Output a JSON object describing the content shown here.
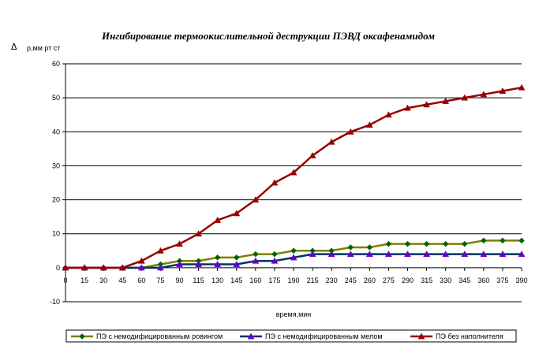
{
  "chart_data": {
    "type": "line",
    "title": "Ингибирование термоокислительной деструкции ПЭВД оксафенамидом",
    "ylabel_symbol": "Δ",
    "ylabel": "р,мм рт ст",
    "xlabel": "время,мин",
    "x": [
      0,
      15,
      30,
      45,
      60,
      75,
      90,
      115,
      130,
      145,
      160,
      175,
      190,
      215,
      230,
      245,
      260,
      275,
      290,
      315,
      330,
      345,
      360,
      375,
      390
    ],
    "ylim": [
      -10,
      60
    ],
    "yticks": [
      -10,
      0,
      10,
      20,
      30,
      40,
      50,
      60
    ],
    "grid": true,
    "legend": "bottom",
    "series": [
      {
        "name": "ПЭ с немодифицированным ровингом",
        "color": "#808000",
        "marker": "diamond",
        "marker_color": "#006400",
        "values": [
          0,
          0,
          0,
          0,
          0,
          1,
          2,
          2,
          3,
          3,
          4,
          4,
          5,
          5,
          5,
          6,
          6,
          7,
          7,
          7,
          7,
          7,
          8,
          8,
          8
        ]
      },
      {
        "name": "ПЭ с немодифицированным мелом",
        "color": "#003366",
        "marker": "triangle",
        "marker_color": "#6600cc",
        "values": [
          0,
          0,
          0,
          0,
          0,
          0,
          1,
          1,
          1,
          1,
          2,
          2,
          3,
          4,
          4,
          4,
          4,
          4,
          4,
          4,
          4,
          4,
          4,
          4,
          4
        ]
      },
      {
        "name": "ПЭ без наполнителя",
        "color": "#990000",
        "marker": "triangle",
        "marker_color": "#990000",
        "values": [
          0,
          0,
          0,
          0,
          2,
          5,
          7,
          10,
          14,
          16,
          20,
          25,
          28,
          33,
          37,
          40,
          42,
          45,
          47,
          48,
          49,
          50,
          51,
          52,
          53
        ]
      }
    ]
  }
}
